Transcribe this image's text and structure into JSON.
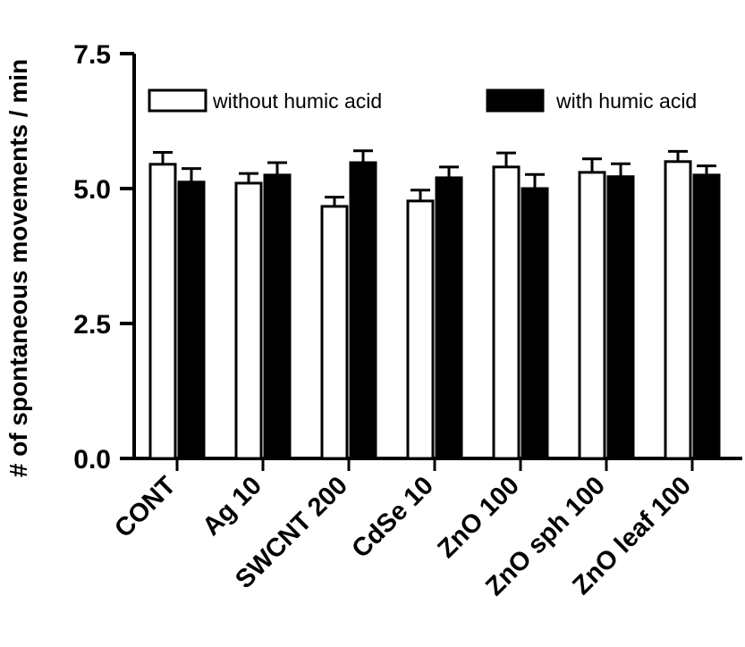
{
  "chart_data": {
    "type": "bar",
    "title": "",
    "xlabel": "",
    "ylabel": "# of spontaneous movements / min",
    "ylim": [
      0,
      7.5
    ],
    "yticks": [
      "0.0",
      "2.5",
      "5.0",
      "7.5"
    ],
    "categories": [
      "CONT",
      "Ag 10",
      "SWCNT 200",
      "CdSe 10",
      "ZnO 100",
      "ZnO sph 100",
      "ZnO leaf 100"
    ],
    "series": [
      {
        "name": "without humic acid",
        "fill": "#ffffff",
        "values": [
          5.45,
          5.1,
          4.67,
          4.77,
          5.4,
          5.3,
          5.5
        ],
        "errors": [
          0.22,
          0.18,
          0.17,
          0.2,
          0.26,
          0.25,
          0.19
        ]
      },
      {
        "name": "with humic acid",
        "fill": "#000000",
        "values": [
          5.12,
          5.25,
          5.48,
          5.2,
          5.0,
          5.22,
          5.25
        ],
        "errors": [
          0.25,
          0.23,
          0.22,
          0.2,
          0.26,
          0.24,
          0.17
        ]
      }
    ],
    "legend_position": "top",
    "grid": false
  }
}
